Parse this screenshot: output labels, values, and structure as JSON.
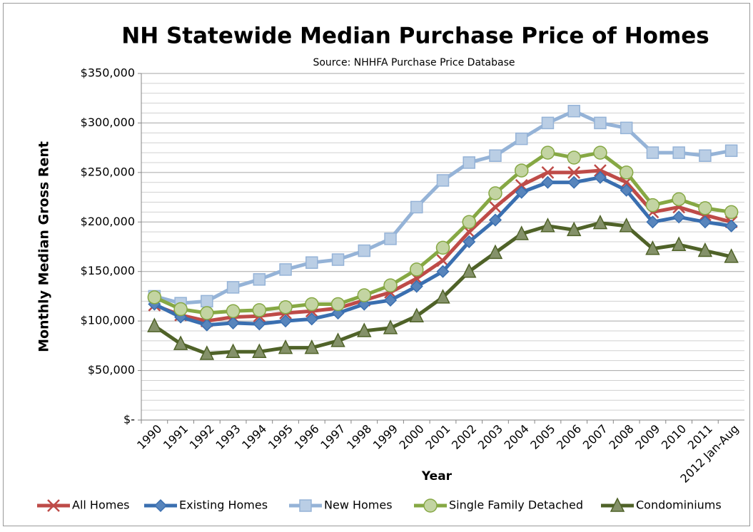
{
  "chart_data": {
    "type": "line",
    "title": "NH Statewide Median Purchase Price of Homes",
    "subtitle": "Source: NHHFA Purchase Price Database",
    "x_label": "Year",
    "y_label": "Monthly Median Gross Rent",
    "categories": [
      "1990",
      "1991",
      "1992",
      "1993",
      "1994",
      "1995",
      "1996",
      "1997",
      "1998",
      "1999",
      "2000",
      "2001",
      "2002",
      "2003",
      "2004",
      "2005",
      "2006",
      "2007",
      "2008",
      "2009",
      "2010",
      "2011",
      "2012 Jan-Aug"
    ],
    "ylim": [
      0,
      350000
    ],
    "yticks": [
      {
        "value": 0,
        "label": "$-"
      },
      {
        "value": 50000,
        "label": "$50,000"
      },
      {
        "value": 100000,
        "label": "$100,000"
      },
      {
        "value": 150000,
        "label": "$150,000"
      },
      {
        "value": 200000,
        "label": "$200,000"
      },
      {
        "value": 250000,
        "label": "$250,000"
      },
      {
        "value": 300000,
        "label": "$300,000"
      },
      {
        "value": 350000,
        "label": "$350,000"
      }
    ],
    "yminorticks": [
      10000,
      20000,
      30000,
      40000,
      60000,
      70000,
      80000,
      90000,
      110000,
      120000,
      130000,
      140000,
      160000,
      170000,
      180000,
      190000,
      210000,
      220000,
      230000,
      240000,
      260000,
      270000,
      280000,
      290000,
      310000,
      320000,
      330000,
      340000
    ],
    "grid": true,
    "legend": "bottom",
    "series": [
      {
        "name": "All Homes",
        "color": "#be4b48",
        "marker": "x",
        "values": [
          116000,
          106000,
          100000,
          104000,
          105000,
          108000,
          110000,
          113000,
          121000,
          129000,
          143000,
          161000,
          190000,
          215000,
          237000,
          250000,
          250000,
          252000,
          240000,
          210000,
          215000,
          207000,
          200000
        ]
      },
      {
        "name": "Existing Homes",
        "color": "#3a6fb0",
        "marker": "diamond",
        "values": [
          117000,
          104000,
          96000,
          98000,
          97000,
          100000,
          102000,
          108000,
          117000,
          121000,
          135000,
          150000,
          180000,
          202000,
          230000,
          240000,
          240000,
          245000,
          232000,
          200000,
          205000,
          200000,
          196000
        ]
      },
      {
        "name": "New Homes",
        "color": "#95b3d7",
        "marker": "square",
        "values": [
          125000,
          118000,
          120000,
          134000,
          142000,
          152000,
          159000,
          162000,
          171000,
          183000,
          215000,
          242000,
          260000,
          267000,
          284000,
          300000,
          312000,
          300000,
          295000,
          270000,
          270000,
          267000,
          272000
        ]
      },
      {
        "name": "Single Family Detached",
        "color": "#86a844",
        "marker": "circle",
        "values": [
          124000,
          112000,
          108000,
          110000,
          111000,
          114000,
          117000,
          117000,
          126000,
          136000,
          152000,
          174000,
          200000,
          229000,
          252000,
          270000,
          265000,
          270000,
          250000,
          217000,
          223000,
          214000,
          210000
        ]
      },
      {
        "name": "Condominiums",
        "color": "#4f6228",
        "marker": "triangle",
        "values": [
          95000,
          77000,
          67000,
          69000,
          69000,
          73000,
          73000,
          80000,
          90000,
          93000,
          105000,
          124000,
          150000,
          169000,
          188000,
          196000,
          192000,
          199000,
          196000,
          173000,
          177000,
          171000,
          165000
        ]
      }
    ]
  }
}
